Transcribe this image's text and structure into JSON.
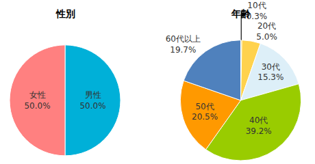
{
  "chart_data": [
    {
      "type": "pie",
      "title": "性別",
      "categories": [
        "男性",
        "女性"
      ],
      "values": [
        50.0,
        50.0
      ],
      "value_labels": [
        "50.0%",
        "50.0%"
      ],
      "colors": [
        "#00B0D8",
        "#FF8080"
      ],
      "data_labels": true
    },
    {
      "type": "pie",
      "title": "年齢",
      "categories": [
        "10代",
        "20代",
        "30代",
        "40代",
        "50代",
        "60代以上"
      ],
      "values": [
        0.3,
        5.0,
        15.3,
        39.2,
        20.5,
        19.7
      ],
      "value_labels": [
        "0.3%",
        "5.0%",
        "15.3%",
        "39.2%",
        "20.5%",
        "19.7%"
      ],
      "colors": [
        "#F0B400",
        "#FFD24D",
        "#DDEFF8",
        "#99CC00",
        "#FF9900",
        "#4F81BD"
      ],
      "data_labels": true
    }
  ]
}
